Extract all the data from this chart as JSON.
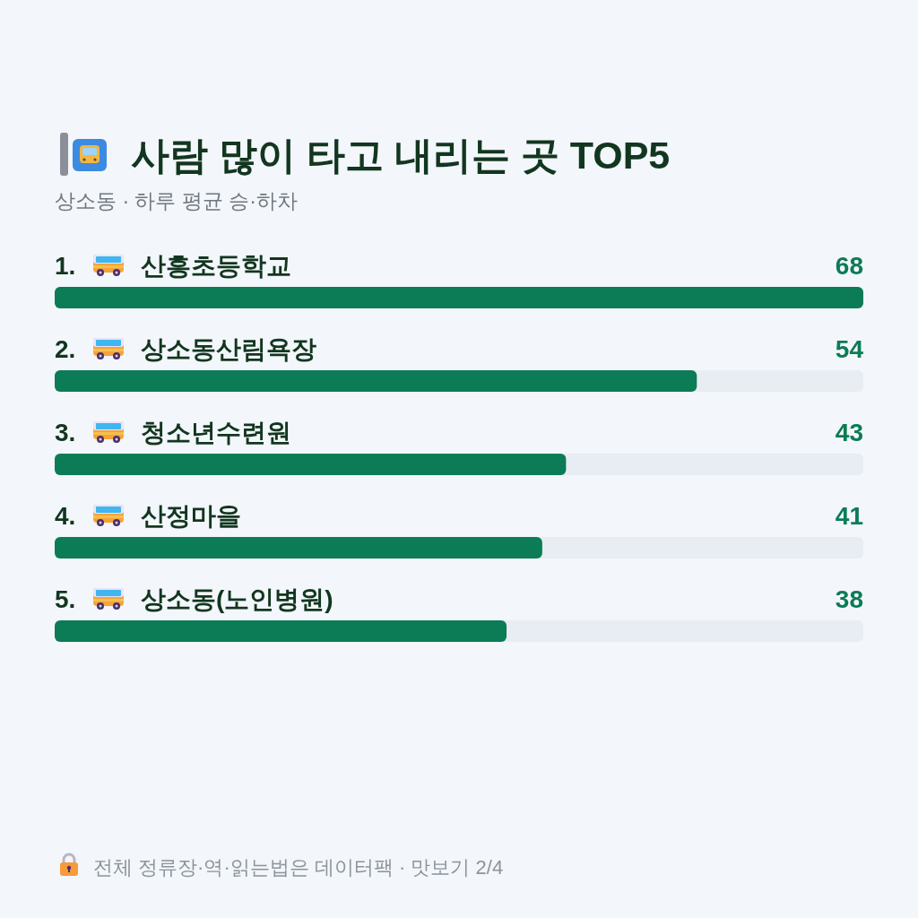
{
  "chart_data": {
    "type": "bar",
    "orientation": "horizontal",
    "title": "사람 많이 타고 내리는 곳 TOP5",
    "subtitle": "상소동 · 하루 평균 승·하차",
    "categories": [
      "1. 산흥초등학교",
      "2. 상소동산림욕장",
      "3. 청소년수련원",
      "4. 산정마을",
      "5. 상소동(노인병원)"
    ],
    "values": [
      68,
      54,
      43,
      41,
      38
    ],
    "color": "#0b7c55",
    "data_labels": true,
    "annotations": [
      "전체 정류장·역·읽는법은 데이터팩 · 맛보기 2/4"
    ]
  }
}
